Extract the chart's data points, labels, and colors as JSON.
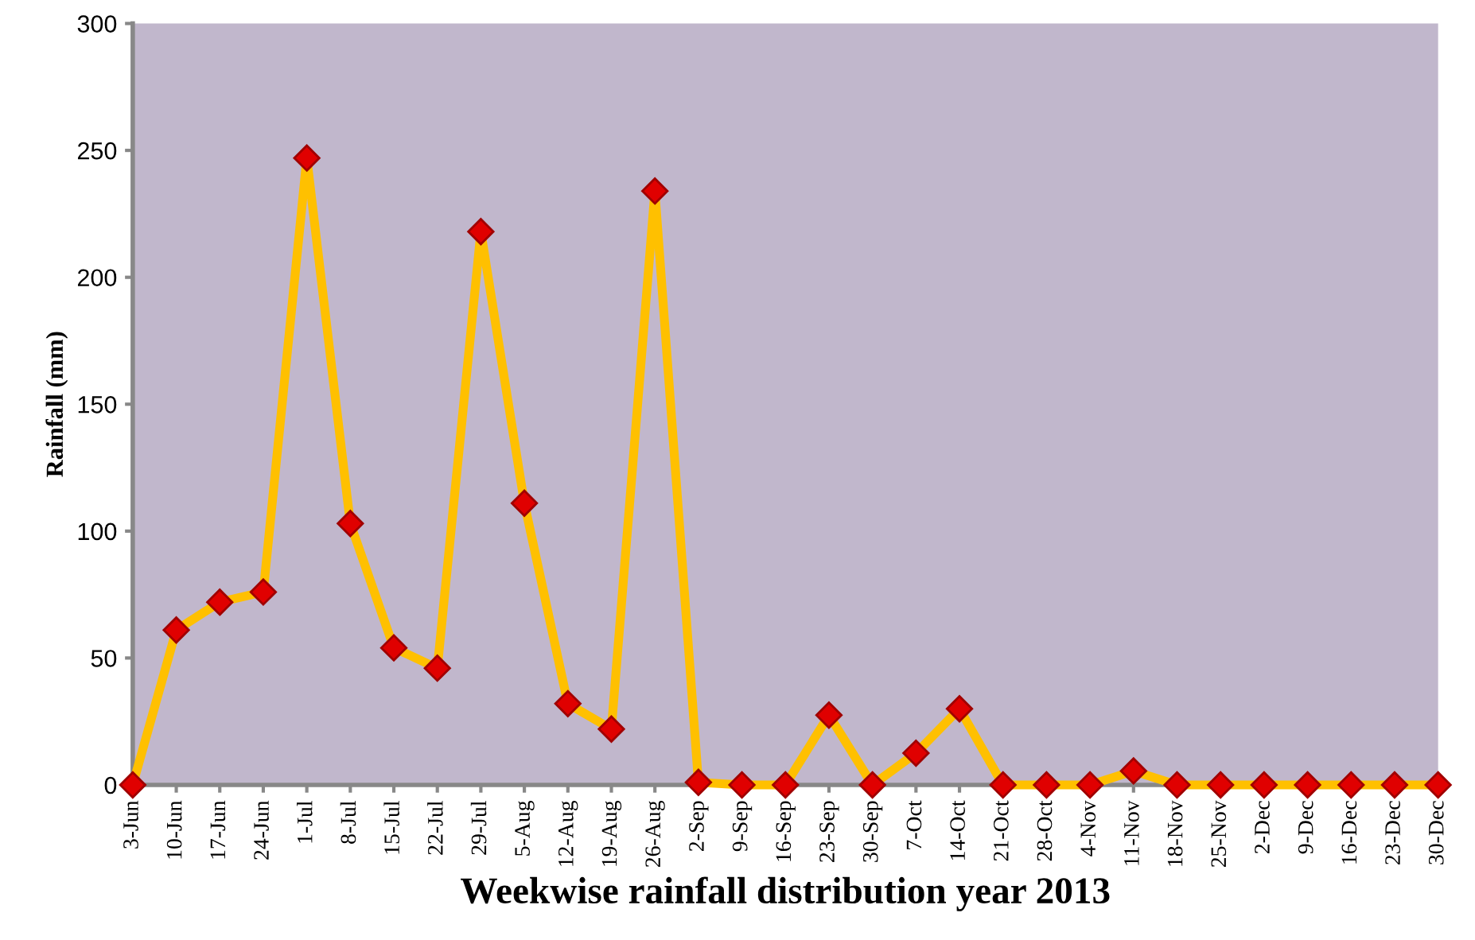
{
  "chart_data": {
    "type": "line",
    "xlabel": "Weekwise rainfall distribution year 2013",
    "ylabel": "Rainfall (mm)",
    "categories": [
      "3-Jun",
      "10-Jun",
      "17-Jun",
      "24-Jun",
      "1-Jul",
      "8-Jul",
      "15-Jul",
      "22-Jul",
      "29-Jul",
      "5-Aug",
      "12-Aug",
      "19-Aug",
      "26-Aug",
      "2-Sep",
      "9-Sep",
      "16-Sep",
      "23-Sep",
      "30-Sep",
      "7-Oct",
      "14-Oct",
      "21-Oct",
      "28-Oct",
      "4-Nov",
      "11-Nov",
      "18-Nov",
      "25-Nov",
      "2-Dec",
      "9-Dec",
      "16-Dec",
      "23-Dec",
      "30-Dec"
    ],
    "series": [
      {
        "color": "#ffc000",
        "values": [
          0,
          61,
          72,
          76,
          247,
          103,
          54,
          46,
          218,
          111,
          32,
          22,
          234,
          1,
          0,
          0,
          27.5,
          0,
          12.5,
          30,
          0,
          0,
          0,
          5.5,
          0,
          0,
          0,
          0,
          0,
          0,
          0
        ]
      }
    ],
    "ylim": [
      0,
      300
    ],
    "yticks": [
      0,
      50,
      100,
      150,
      200,
      250,
      300
    ],
    "marker": "diamond",
    "line_style": "solid",
    "grid": false,
    "legend": false
  }
}
